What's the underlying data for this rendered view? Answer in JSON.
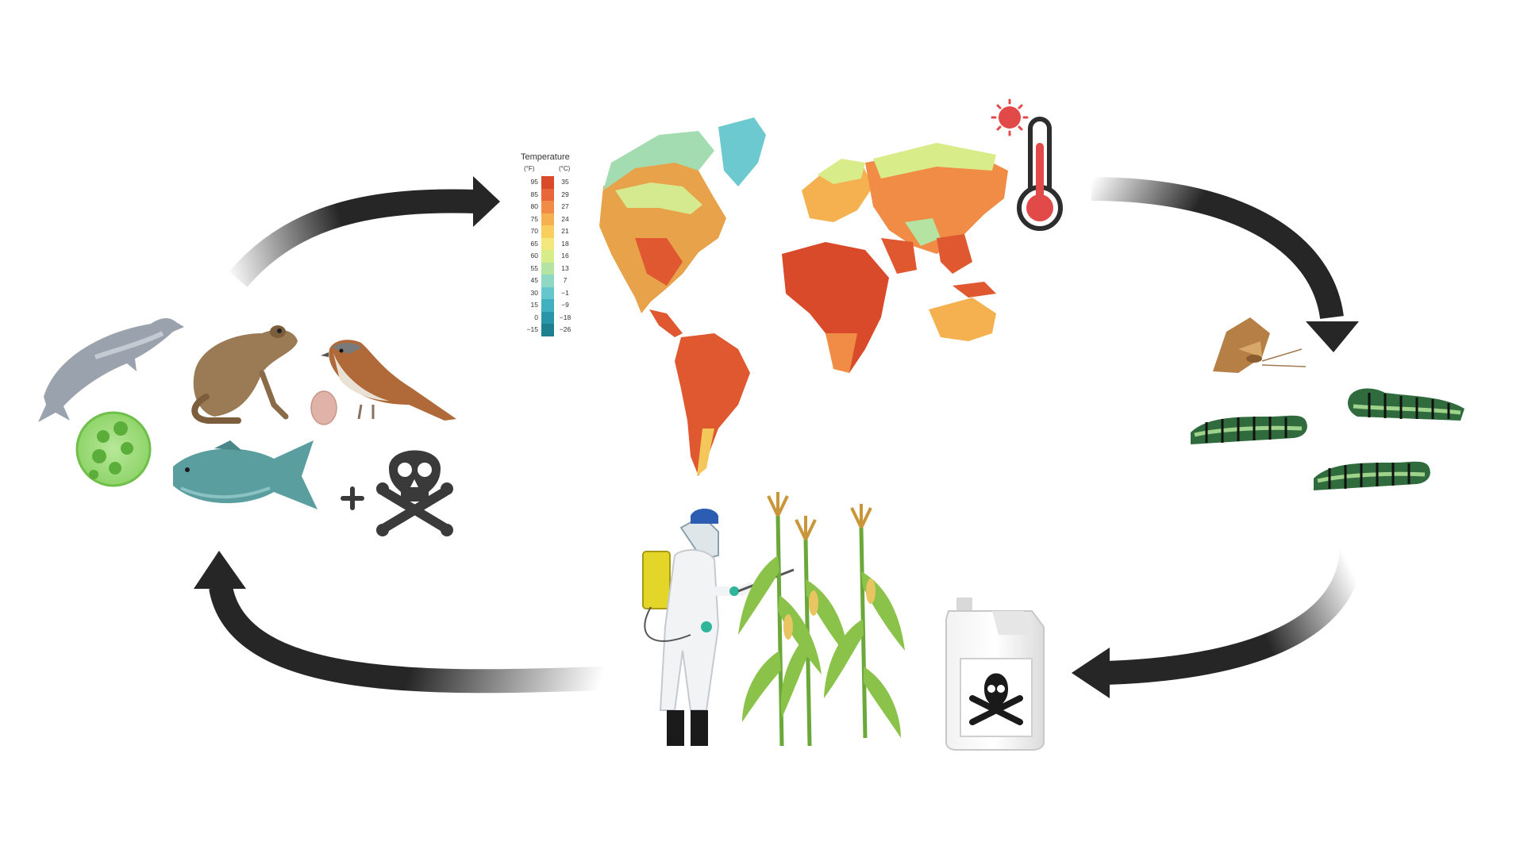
{
  "legend": {
    "title": "Temperature",
    "unit_f": "(°F)",
    "unit_c": "(°C)",
    "rows": [
      {
        "f": "95",
        "c": "35",
        "color": "#d94a2a"
      },
      {
        "f": "85",
        "c": "29",
        "color": "#e8673a"
      },
      {
        "f": "80",
        "c": "27",
        "color": "#f08c45"
      },
      {
        "f": "75",
        "c": "24",
        "color": "#f5b04f"
      },
      {
        "f": "70",
        "c": "21",
        "color": "#f8cf5c"
      },
      {
        "f": "65",
        "c": "18",
        "color": "#f3e67a"
      },
      {
        "f": "60",
        "c": "16",
        "color": "#d9ec8a"
      },
      {
        "f": "55",
        "c": "13",
        "color": "#b5e3a2"
      },
      {
        "f": "45",
        "c": "7",
        "color": "#8fd8c3"
      },
      {
        "f": "30",
        "c": "−1",
        "color": "#66c6cd"
      },
      {
        "f": "15",
        "c": "−9",
        "color": "#3fb0bf"
      },
      {
        "f": "0",
        "c": "−18",
        "color": "#2896a8"
      },
      {
        "f": "−15",
        "c": "−26",
        "color": "#1e7f8f"
      }
    ]
  },
  "colors": {
    "arrow": "#262626",
    "skull": "#3a3a3a",
    "thermometer_red": "#e24a4a",
    "sun": "#e24a4a"
  },
  "icons": [
    "dolphin-icon",
    "frog-icon",
    "sparrow-icon",
    "egg-icon",
    "algae-cell-icon",
    "fish-icon",
    "plus-icon",
    "skull-crossbones-icon",
    "world-temperature-map",
    "sun-icon",
    "thermometer-icon",
    "moth-icon",
    "caterpillar-icon",
    "pesticide-jug-icon",
    "sprayer-worker-icon",
    "corn-plant-icon"
  ]
}
